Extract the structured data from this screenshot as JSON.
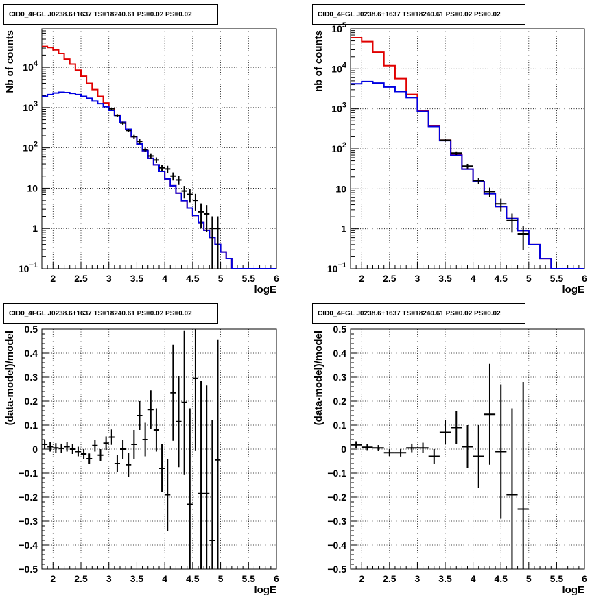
{
  "chart_data": [
    {
      "type": "line",
      "title": "CID0_4FGL J0238.6+1637 TS=18240.61 PS=0.02 PS=0.02",
      "xlabel": "logE",
      "ylabel": "Nb of counts",
      "xlim": [
        1.8,
        6.0
      ],
      "ylim": [
        0.1,
        90000
      ],
      "log_y": true,
      "grid": true,
      "x_ticks": [
        "2",
        "2.5",
        "3",
        "3.5",
        "4",
        "4.5",
        "5",
        "5.5",
        "6"
      ],
      "y_ticks": [
        {
          "v": 0.1,
          "base": "10",
          "exp": "−1"
        },
        {
          "v": 1,
          "label": "1"
        },
        {
          "v": 10,
          "label": "10"
        },
        {
          "v": 100,
          "base": "10",
          "exp": "2"
        },
        {
          "v": 1000,
          "base": "10",
          "exp": "3"
        },
        {
          "v": 10000,
          "base": "10",
          "exp": "4"
        }
      ],
      "bin_edges": [
        1.8,
        1.9,
        2.0,
        2.1,
        2.2,
        2.3,
        2.4,
        2.5,
        2.6,
        2.7,
        2.8,
        2.9,
        3.0,
        3.1,
        3.2,
        3.3,
        3.4,
        3.5,
        3.6,
        3.7,
        3.8,
        3.9,
        4.0,
        4.1,
        4.2,
        4.3,
        4.4,
        4.5,
        4.6,
        4.7,
        4.8,
        4.9,
        5.0,
        5.1,
        5.2,
        5.3,
        5.4,
        5.5,
        5.6,
        5.7,
        5.8,
        5.9,
        6.0
      ],
      "series": [
        {
          "color": "#e00000",
          "values": [
            33000,
            31000,
            27000,
            22000,
            16000,
            12000,
            8500,
            6000,
            4000,
            2800,
            1900,
            1300,
            950,
            650,
            430,
            290,
            190,
            125,
            85,
            55,
            38,
            26,
            17,
            11.5,
            7.5,
            4.9,
            3.2,
            2.1,
            1.4,
            0.9,
            0.6,
            0.4,
            0.26,
            0.18,
            0.1,
            0.1,
            0.1,
            0.1,
            0.1,
            0.1,
            0.1,
            0.1
          ]
        },
        {
          "color": "#0000e0",
          "values": [
            1900,
            2100,
            2300,
            2400,
            2350,
            2250,
            2100,
            1900,
            1700,
            1450,
            1250,
            1050,
            850,
            640,
            430,
            290,
            190,
            125,
            85,
            55,
            38,
            26,
            17,
            11.5,
            7.5,
            4.9,
            3.2,
            2.1,
            1.4,
            0.9,
            0.6,
            0.4,
            0.26,
            0.18,
            0.1,
            0.1,
            0.1,
            0.1,
            0.1,
            0.1,
            0.1,
            0.1
          ]
        }
      ],
      "data_points": [
        {
          "x": 3.05,
          "y": 930,
          "lo": 860,
          "hi": 1000
        },
        {
          "x": 3.15,
          "y": 640,
          "lo": 590,
          "hi": 690
        },
        {
          "x": 3.25,
          "y": 410,
          "lo": 375,
          "hi": 445
        },
        {
          "x": 3.35,
          "y": 270,
          "lo": 245,
          "hi": 295
        },
        {
          "x": 3.45,
          "y": 190,
          "lo": 170,
          "hi": 210
        },
        {
          "x": 3.55,
          "y": 145,
          "lo": 125,
          "hi": 165
        },
        {
          "x": 3.65,
          "y": 90,
          "lo": 78,
          "hi": 102
        },
        {
          "x": 3.75,
          "y": 63,
          "lo": 53,
          "hi": 73
        },
        {
          "x": 3.85,
          "y": 50,
          "lo": 42,
          "hi": 58
        },
        {
          "x": 3.95,
          "y": 32,
          "lo": 26,
          "hi": 38
        },
        {
          "x": 4.05,
          "y": 30,
          "lo": 24,
          "hi": 36
        },
        {
          "x": 4.15,
          "y": 20,
          "lo": 15.5,
          "hi": 24.5
        },
        {
          "x": 4.25,
          "y": 16,
          "lo": 12,
          "hi": 20
        },
        {
          "x": 4.35,
          "y": 8.5,
          "lo": 5.6,
          "hi": 11.4
        },
        {
          "x": 4.45,
          "y": 7,
          "lo": 4.4,
          "hi": 9.6
        },
        {
          "x": 4.55,
          "y": 5,
          "lo": 2.8,
          "hi": 7.2
        },
        {
          "x": 4.65,
          "y": 2.6,
          "lo": 1.0,
          "hi": 4.2
        },
        {
          "x": 4.75,
          "y": 2.3,
          "lo": 0.8,
          "hi": 3.8
        },
        {
          "x": 4.85,
          "y": 1.0,
          "lo": 0.1,
          "hi": 2.0
        },
        {
          "x": 4.95,
          "y": 1.0,
          "lo": 0.1,
          "hi": 2.0
        }
      ]
    },
    {
      "type": "line",
      "title": "CID0_4FGL J0238.6+1637 TS=18240.61 PS=0.02 PS=0.02",
      "xlabel": "logE",
      "ylabel": "nb of counts",
      "xlim": [
        1.8,
        6.0
      ],
      "ylim": [
        0.1,
        100000
      ],
      "log_y": true,
      "grid": true,
      "x_ticks": [
        "2",
        "2.5",
        "3",
        "3.5",
        "4",
        "4.5",
        "5",
        "5.5",
        "6"
      ],
      "y_ticks": [
        {
          "v": 0.1,
          "base": "10",
          "exp": "−1"
        },
        {
          "v": 1,
          "label": "1"
        },
        {
          "v": 10,
          "label": "10"
        },
        {
          "v": 100,
          "base": "10",
          "exp": "2"
        },
        {
          "v": 1000,
          "base": "10",
          "exp": "3"
        },
        {
          "v": 10000,
          "base": "10",
          "exp": "4"
        },
        {
          "v": 100000,
          "base": "10",
          "exp": "5"
        }
      ],
      "bin_edges": [
        1.8,
        2.0,
        2.2,
        2.4,
        2.6,
        2.8,
        3.0,
        3.2,
        3.4,
        3.6,
        3.8,
        4.0,
        4.2,
        4.4,
        4.6,
        4.8,
        5.0,
        5.2,
        5.4,
        5.6,
        5.8,
        6.0
      ],
      "series": [
        {
          "color": "#e00000",
          "values": [
            60000,
            48000,
            26000,
            12000,
            5700,
            2300,
            890,
            370,
            165,
            70,
            31,
            15,
            7.5,
            3.6,
            1.8,
            0.9,
            0.4,
            0.18,
            0.1,
            0.1,
            0.1
          ]
        },
        {
          "color": "#0000e0",
          "values": [
            4200,
            4800,
            4400,
            3500,
            2700,
            1900,
            860,
            360,
            160,
            69,
            31,
            15,
            7.5,
            3.6,
            1.8,
            0.9,
            0.4,
            0.18,
            0.1,
            0.1,
            0.1
          ]
        }
      ],
      "data_points": [
        {
          "x": 3.5,
          "y": 165,
          "lo": 152,
          "hi": 178
        },
        {
          "x": 3.7,
          "y": 78,
          "lo": 70,
          "hi": 86
        },
        {
          "x": 3.9,
          "y": 37,
          "lo": 32,
          "hi": 42
        },
        {
          "x": 4.1,
          "y": 16,
          "lo": 13,
          "hi": 19
        },
        {
          "x": 4.3,
          "y": 8.5,
          "lo": 6.3,
          "hi": 10.7
        },
        {
          "x": 4.5,
          "y": 4.2,
          "lo": 2.7,
          "hi": 5.7
        },
        {
          "x": 4.7,
          "y": 1.6,
          "lo": 0.8,
          "hi": 2.4
        },
        {
          "x": 4.9,
          "y": 0.75,
          "lo": 0.3,
          "hi": 1.2
        }
      ]
    },
    {
      "type": "scatter",
      "title": "CID0_4FGL J0238.6+1637 TS=18240.61 PS=0.02 PS=0.02",
      "xlabel": "logE",
      "ylabel": "(data-model)/model",
      "xlim": [
        1.8,
        6.0
      ],
      "ylim": [
        -0.5,
        0.5
      ],
      "log_y": false,
      "grid": true,
      "x_ticks": [
        "2",
        "2.5",
        "3",
        "3.5",
        "4",
        "4.5",
        "5",
        "5.5",
        "6"
      ],
      "y_ticks": [
        {
          "v": -0.5,
          "label": "−0.5"
        },
        {
          "v": -0.4,
          "label": "−0.4"
        },
        {
          "v": -0.3,
          "label": "−0.3"
        },
        {
          "v": -0.2,
          "label": "−0.2"
        },
        {
          "v": -0.1,
          "label": "−0.1"
        },
        {
          "v": 0,
          "label": "0"
        },
        {
          "v": 0.1,
          "label": "0.1"
        },
        {
          "v": 0.2,
          "label": "0.2"
        },
        {
          "v": 0.3,
          "label": "0.3"
        },
        {
          "v": 0.4,
          "label": "0.4"
        },
        {
          "v": 0.5,
          "label": "0.5"
        }
      ],
      "xerr": 0.05,
      "points": [
        {
          "x": 1.85,
          "y": 0.02,
          "err": 0.02
        },
        {
          "x": 1.95,
          "y": 0.01,
          "err": 0.02
        },
        {
          "x": 2.05,
          "y": 0.005,
          "err": 0.02
        },
        {
          "x": 2.15,
          "y": 0.003,
          "err": 0.02
        },
        {
          "x": 2.25,
          "y": 0.01,
          "err": 0.02
        },
        {
          "x": 2.35,
          "y": 0.0,
          "err": 0.02
        },
        {
          "x": 2.45,
          "y": -0.01,
          "err": 0.02
        },
        {
          "x": 2.55,
          "y": -0.02,
          "err": 0.02
        },
        {
          "x": 2.65,
          "y": -0.04,
          "err": 0.022
        },
        {
          "x": 2.75,
          "y": 0.015,
          "err": 0.025
        },
        {
          "x": 2.85,
          "y": -0.025,
          "err": 0.025
        },
        {
          "x": 2.95,
          "y": 0.025,
          "err": 0.028
        },
        {
          "x": 3.05,
          "y": 0.05,
          "err": 0.032
        },
        {
          "x": 3.15,
          "y": -0.06,
          "err": 0.035
        },
        {
          "x": 3.25,
          "y": 0.0,
          "err": 0.04
        },
        {
          "x": 3.35,
          "y": -0.065,
          "err": 0.05
        },
        {
          "x": 3.45,
          "y": 0.02,
          "err": 0.06
        },
        {
          "x": 3.55,
          "y": 0.14,
          "err": 0.06
        },
        {
          "x": 3.65,
          "y": 0.04,
          "err": 0.07
        },
        {
          "x": 3.75,
          "y": 0.165,
          "err": 0.08
        },
        {
          "x": 3.85,
          "y": 0.08,
          "err": 0.09
        },
        {
          "x": 3.95,
          "y": -0.08,
          "err": 0.1
        },
        {
          "x": 4.05,
          "y": -0.19,
          "err": 0.15
        },
        {
          "x": 4.15,
          "y": 0.235,
          "err": 0.2
        },
        {
          "x": 4.25,
          "y": 0.115,
          "err": 0.19
        },
        {
          "x": 4.35,
          "y": 0.195,
          "err": 0.3
        },
        {
          "x": 4.45,
          "y": -0.23,
          "err": 0.4
        },
        {
          "x": 4.55,
          "y": 0.295,
          "err": 0.3
        },
        {
          "x": 4.65,
          "y": -0.185,
          "err": 0.47
        },
        {
          "x": 4.75,
          "y": -0.185,
          "err": 0.45
        },
        {
          "x": 4.85,
          "y": -0.38,
          "err": 0.5
        },
        {
          "x": 4.95,
          "y": -0.045,
          "err": 0.5
        }
      ]
    },
    {
      "type": "scatter",
      "title": "CID0_4FGL J0238.6+1637 TS=18240.61 PS=0.02 PS=0.02",
      "xlabel": "logE",
      "ylabel": "(data-model)/model",
      "xlim": [
        1.8,
        6.0
      ],
      "ylim": [
        -0.5,
        0.5
      ],
      "log_y": false,
      "grid": true,
      "x_ticks": [
        "2",
        "2.5",
        "3",
        "3.5",
        "4",
        "4.5",
        "5",
        "5.5",
        "6"
      ],
      "y_ticks": [
        {
          "v": -0.5,
          "label": "−0.5"
        },
        {
          "v": -0.4,
          "label": "−0.4"
        },
        {
          "v": -0.3,
          "label": "−0.3"
        },
        {
          "v": -0.2,
          "label": "−0.2"
        },
        {
          "v": -0.1,
          "label": "−0.1"
        },
        {
          "v": 0,
          "label": "0"
        },
        {
          "v": 0.1,
          "label": "0.1"
        },
        {
          "v": 0.2,
          "label": "0.2"
        },
        {
          "v": 0.3,
          "label": "0.3"
        },
        {
          "v": 0.4,
          "label": "0.4"
        },
        {
          "v": 0.5,
          "label": "0.5"
        }
      ],
      "xerr": 0.1,
      "points": [
        {
          "x": 1.9,
          "y": 0.018,
          "err": 0.015
        },
        {
          "x": 2.1,
          "y": 0.008,
          "err": 0.012
        },
        {
          "x": 2.3,
          "y": 0.005,
          "err": 0.012
        },
        {
          "x": 2.5,
          "y": -0.015,
          "err": 0.014
        },
        {
          "x": 2.7,
          "y": -0.015,
          "err": 0.016
        },
        {
          "x": 2.9,
          "y": 0.005,
          "err": 0.018
        },
        {
          "x": 3.1,
          "y": 0.005,
          "err": 0.022
        },
        {
          "x": 3.3,
          "y": -0.03,
          "err": 0.03
        },
        {
          "x": 3.5,
          "y": 0.07,
          "err": 0.05
        },
        {
          "x": 3.7,
          "y": 0.09,
          "err": 0.07
        },
        {
          "x": 3.9,
          "y": 0.01,
          "err": 0.09
        },
        {
          "x": 4.1,
          "y": -0.03,
          "err": 0.13
        },
        {
          "x": 4.3,
          "y": 0.145,
          "err": 0.21
        },
        {
          "x": 4.5,
          "y": -0.01,
          "err": 0.28
        },
        {
          "x": 4.7,
          "y": -0.19,
          "err": 0.36
        },
        {
          "x": 4.9,
          "y": -0.25,
          "err": 0.53
        }
      ]
    }
  ]
}
